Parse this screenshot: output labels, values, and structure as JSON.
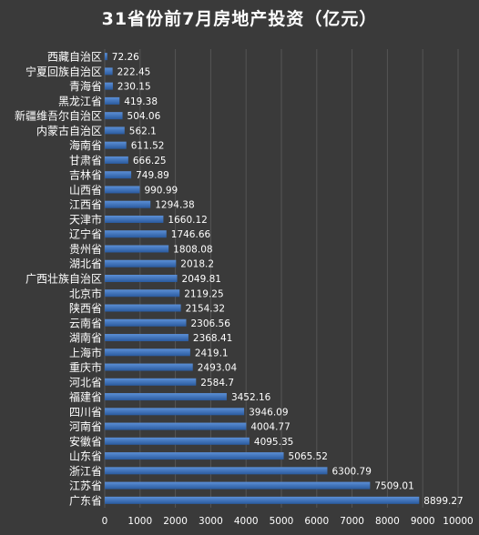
{
  "chart_data": {
    "type": "bar",
    "orientation": "horizontal",
    "title": "31省份前7月房地产投资（亿元）",
    "categories": [
      "西藏自治区",
      "宁夏回族自治区",
      "青海省",
      "黑龙江省",
      "新疆维吾尔自治区",
      "内蒙古自治区",
      "海南省",
      "甘肃省",
      "吉林省",
      "山西省",
      "江西省",
      "天津市",
      "辽宁省",
      "贵州省",
      "湖北省",
      "广西壮族自治区",
      "北京市",
      "陕西省",
      "云南省",
      "湖南省",
      "上海市",
      "重庆市",
      "河北省",
      "福建省",
      "四川省",
      "河南省",
      "安徽省",
      "山东省",
      "浙江省",
      "江苏省",
      "广东省"
    ],
    "values": [
      72.26,
      222.45,
      230.15,
      419.38,
      504.06,
      562.1,
      611.52,
      666.25,
      749.89,
      990.99,
      1294.38,
      1660.12,
      1746.66,
      1808.08,
      2018.2,
      2049.81,
      2119.25,
      2154.32,
      2306.56,
      2368.41,
      2419.1,
      2493.04,
      2584.7,
      3452.16,
      3946.09,
      4004.77,
      4095.35,
      5065.52,
      6300.79,
      7509.01,
      8899.27
    ],
    "value_labels": [
      "72.26",
      "222.45",
      "230.15",
      "419.38",
      "504.06",
      "562.1",
      "611.52",
      "666.25",
      "749.89",
      "990.99",
      "1294.38",
      "1660.12",
      "1746.66",
      "1808.08",
      "2018.2",
      "2049.81",
      "2119.25",
      "2154.32",
      "2306.56",
      "2368.41",
      "2419.1",
      "2493.04",
      "2584.7",
      "3452.16",
      "3946.09",
      "4004.77",
      "4095.35",
      "5065.52",
      "6300.79",
      "7509.01",
      "8899.27"
    ],
    "xticks": [
      0,
      1000,
      2000,
      3000,
      4000,
      5000,
      6000,
      7000,
      8000,
      9000,
      10000
    ],
    "xlim": [
      0,
      10000
    ],
    "grid": "vertical",
    "legend": "none",
    "colors": {
      "background": "#3a3a3a",
      "bar_top": "#5b8fd6",
      "bar_bottom": "#2a5a9e",
      "grid": "#555555",
      "text": "#ffffff"
    }
  }
}
